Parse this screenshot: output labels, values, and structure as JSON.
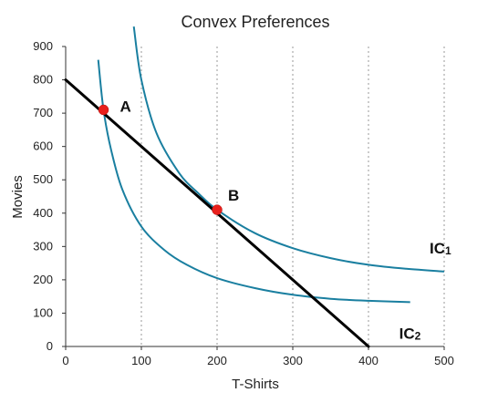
{
  "chart_data": {
    "type": "line",
    "title": "Convex Preferences",
    "xlabel": "T-Shirts",
    "ylabel": "Movies",
    "xlim": [
      0,
      500
    ],
    "ylim": [
      0,
      900
    ],
    "x_ticks": [
      "0",
      "100",
      "200",
      "300",
      "400",
      "500"
    ],
    "y_ticks": [
      "0",
      "100",
      "200",
      "300",
      "400",
      "500",
      "600",
      "700",
      "800",
      "900"
    ],
    "grid": "vertical dotted",
    "budget_line": {
      "x": [
        0,
        400
      ],
      "y": [
        800,
        0
      ],
      "color": "#000000"
    },
    "series": [
      {
        "name": "IC1",
        "label_main": "IC",
        "label_sub": "1",
        "color": "#1a7fa0",
        "x": [
          90,
          100,
          120,
          150,
          175,
          200,
          250,
          300,
          350,
          400,
          450,
          500
        ],
        "y": [
          960,
          800,
          640,
          520,
          460,
          410,
          340,
          295,
          265,
          245,
          233,
          225
        ]
      },
      {
        "name": "IC2",
        "label_main": "IC",
        "label_sub": "2",
        "color": "#1a7fa0",
        "x": [
          43,
          50,
          60,
          75,
          100,
          130,
          160,
          200,
          250,
          300,
          350,
          400,
          455
        ],
        "y": [
          860,
          710,
          590,
          470,
          360,
          290,
          245,
          205,
          175,
          155,
          143,
          137,
          133
        ]
      }
    ],
    "points": [
      {
        "label": "A",
        "x": 50,
        "y": 710,
        "color": "#e8201c"
      },
      {
        "label": "B",
        "x": 200,
        "y": 410,
        "color": "#e8201c"
      }
    ]
  }
}
